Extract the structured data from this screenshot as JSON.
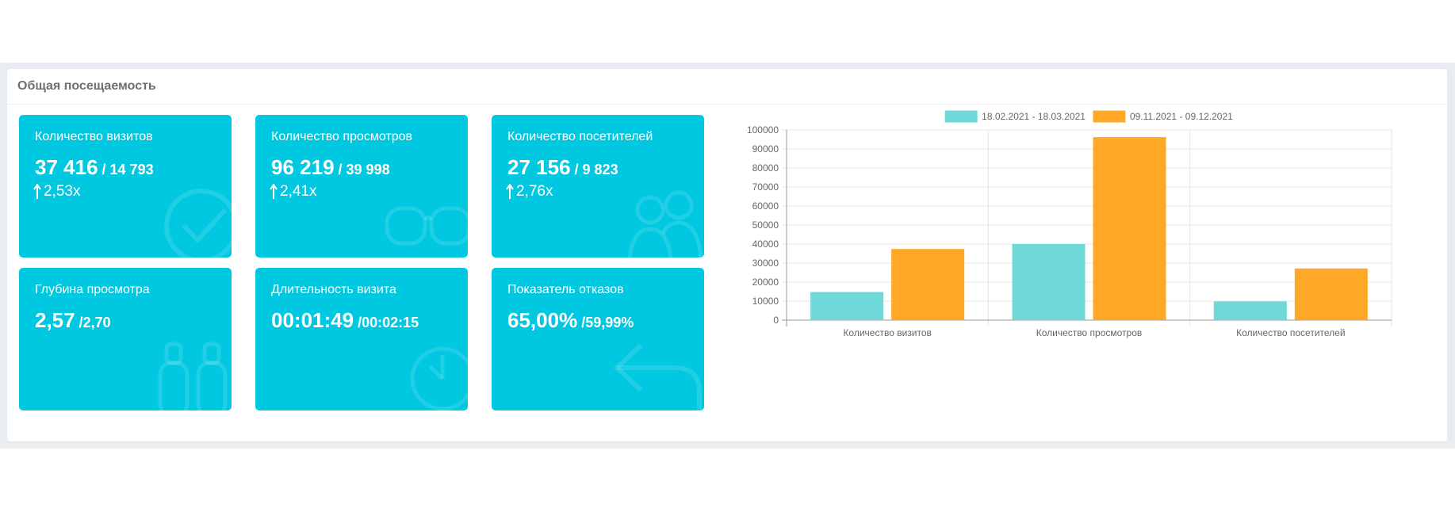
{
  "panel": {
    "title": "Общая посещаемость"
  },
  "cards": [
    {
      "title": "Количество визитов",
      "value": "37 416",
      "previous": " / 14 793",
      "ratio": "2,53x",
      "icon": "check-circle-icon"
    },
    {
      "title": "Количество просмотров",
      "value": "96 219",
      "previous": " / 39 998",
      "ratio": "2,41x",
      "icon": "glasses-icon"
    },
    {
      "title": "Количество посетителей",
      "value": "27 156",
      "previous": " / 9 823",
      "ratio": "2,76x",
      "icon": "users-icon"
    },
    {
      "title": "Глубина просмотра",
      "value": "2,57",
      "previous": " /2,70",
      "ratio": "",
      "icon": "binoculars-icon"
    },
    {
      "title": "Длительность визита",
      "value": "00:01:49",
      "previous": " /00:02:15",
      "ratio": "",
      "icon": "clock-icon"
    },
    {
      "title": "Показатель отказов",
      "value": "65,00%",
      "previous": " /59,99%",
      "ratio": "",
      "icon": "return-arrow-icon"
    }
  ],
  "colors": {
    "card_bg": "#00c8e0",
    "series1": "#6fd9d9",
    "series2": "#ffa726"
  },
  "chart_data": {
    "type": "bar",
    "categories": [
      "Количество визитов",
      "Количество просмотров",
      "Количество посетителей"
    ],
    "series": [
      {
        "name": "18.02.2021 - 18.03.2021",
        "values": [
          14793,
          39998,
          9823
        ],
        "color": "#6fd9d9"
      },
      {
        "name": "09.11.2021 - 09.12.2021",
        "values": [
          37416,
          96219,
          27156
        ],
        "color": "#ffa726"
      }
    ],
    "ylim": [
      0,
      100000
    ],
    "yticks": [
      "100000",
      "90000",
      "80000",
      "70000",
      "60000",
      "50000",
      "40000",
      "30000",
      "20000",
      "10000",
      "0"
    ],
    "grid": true,
    "legend": "top"
  }
}
